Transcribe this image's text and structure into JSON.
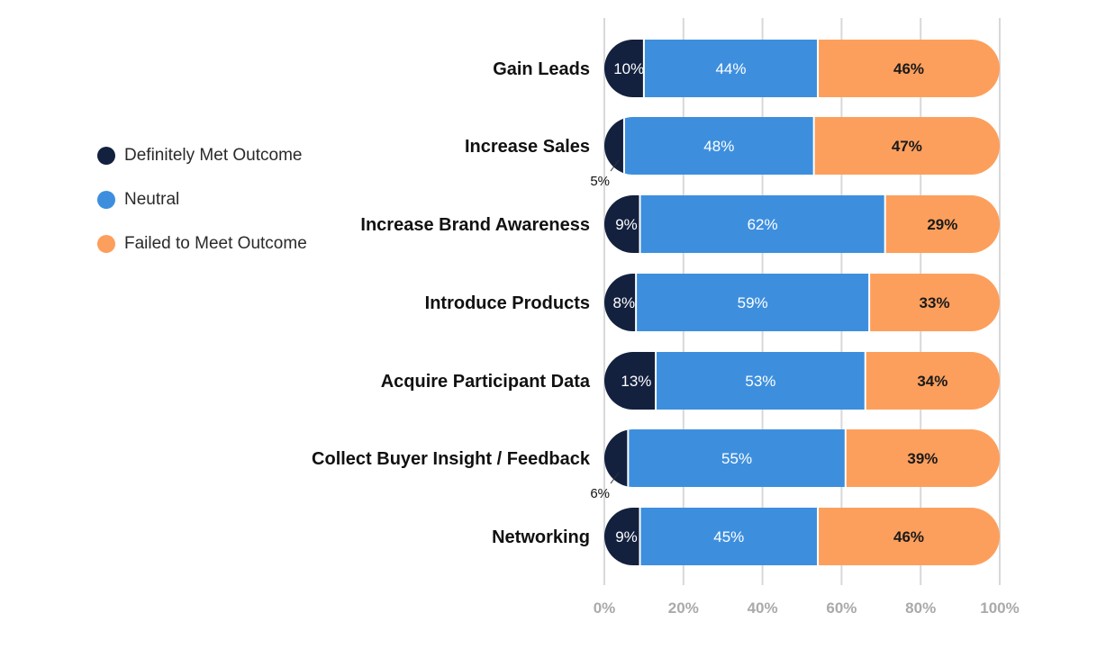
{
  "chart_data": {
    "type": "bar",
    "orientation": "horizontal",
    "stacked": true,
    "categories": [
      "Gain Leads",
      "Increase Sales",
      "Increase Brand Awareness",
      "Introduce Products",
      "Acquire Participant Data",
      "Collect Buyer Insight / Feedback",
      "Networking"
    ],
    "series": [
      {
        "name": "Definitely Met Outcome",
        "color": "#13213f",
        "values": [
          10,
          5,
          9,
          8,
          13,
          6,
          9
        ]
      },
      {
        "name": "Neutral",
        "color": "#3d8fde",
        "values": [
          44,
          48,
          62,
          59,
          53,
          55,
          45
        ]
      },
      {
        "name": "Failed to Meet Outcome",
        "color": "#fd9f5c",
        "values": [
          46,
          47,
          29,
          33,
          34,
          39,
          46
        ]
      }
    ],
    "xlim": [
      0,
      100
    ],
    "x_ticks": [
      "0%",
      "20%",
      "40%",
      "60%",
      "80%",
      "100%"
    ],
    "grid": true,
    "legend_position": "left",
    "title": "",
    "xlabel": "",
    "ylabel": ""
  }
}
